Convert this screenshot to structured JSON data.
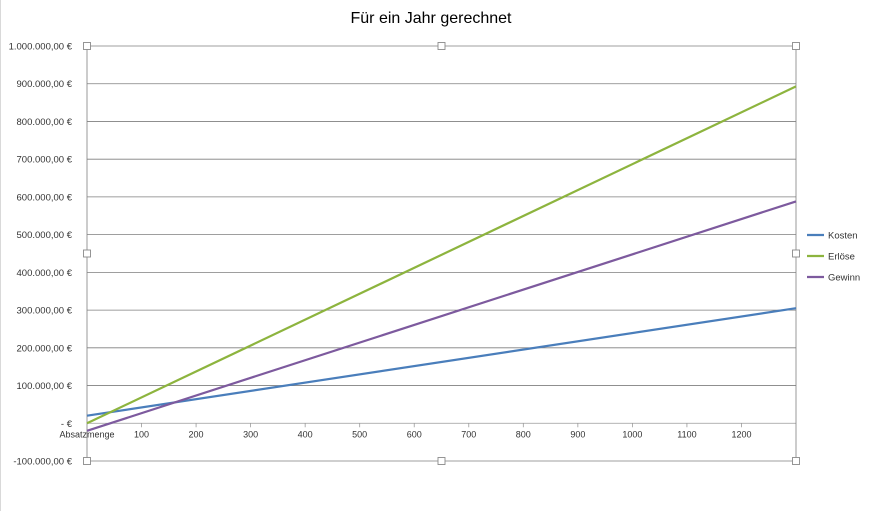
{
  "chart_data": {
    "type": "line",
    "title": "Für ein Jahr gerechnet",
    "xlabel": "Absatzmenge",
    "ylabel": "",
    "x_ticks": [
      "100",
      "200",
      "300",
      "400",
      "500",
      "600",
      "700",
      "800",
      "900",
      "1000",
      "1100",
      "1200"
    ],
    "x_range": [
      0,
      1300
    ],
    "y_ticks": [
      {
        "value": 1000000,
        "label": "1.000.000,00 €"
      },
      {
        "value": 900000,
        "label": "900.000,00 €"
      },
      {
        "value": 800000,
        "label": "800.000,00 €"
      },
      {
        "value": 700000,
        "label": "700.000,00 €"
      },
      {
        "value": 600000,
        "label": "600.000,00 €"
      },
      {
        "value": 500000,
        "label": "500.000,00 €"
      },
      {
        "value": 400000,
        "label": "400.000,00 €"
      },
      {
        "value": 300000,
        "label": "300.000,00 €"
      },
      {
        "value": 200000,
        "label": "200.000,00 €"
      },
      {
        "value": 100000,
        "label": "100.000,00 €"
      },
      {
        "value": 0,
        "label": "-   €"
      },
      {
        "value": -100000,
        "label": "-100.000,00 €"
      }
    ],
    "ylim": [
      -100000,
      1000000
    ],
    "grid": true,
    "legend_position": "right",
    "series": [
      {
        "name": "Kosten",
        "color": "#4a7ebb",
        "x": [
          0,
          1300
        ],
        "values": [
          20000,
          305000
        ]
      },
      {
        "name": "Erlöse",
        "color": "#8db43e",
        "x": [
          0,
          1300
        ],
        "values": [
          0,
          893000
        ]
      },
      {
        "name": "Gewinn",
        "color": "#7d5a9e",
        "x": [
          0,
          1300
        ],
        "values": [
          -20000,
          588000
        ]
      }
    ]
  }
}
